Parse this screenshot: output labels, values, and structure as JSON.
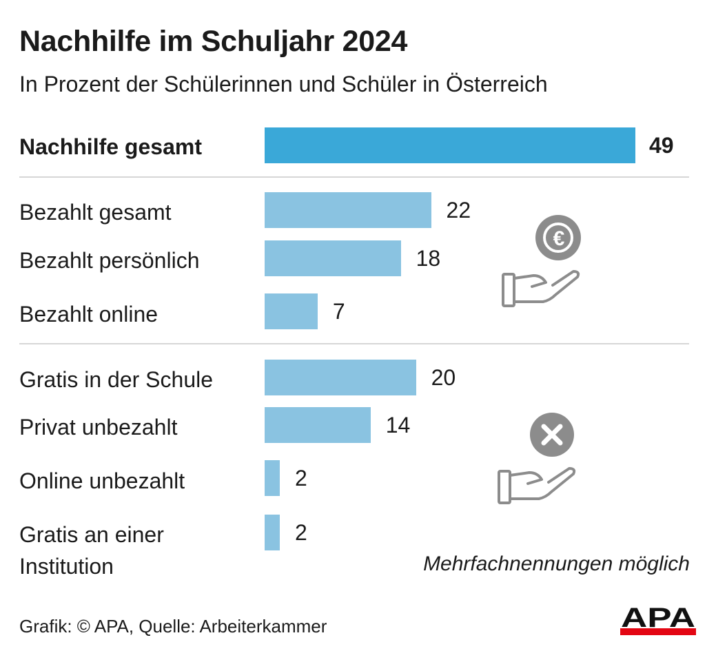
{
  "chart_data": {
    "type": "bar",
    "orientation": "horizontal",
    "title": "Nachhilfe im Schuljahr 2024",
    "subtitle": "In Prozent der Schülerinnen und Schüler in Österreich",
    "categories": [
      "Nachhilfe gesamt",
      "Bezahlt gesamt",
      "Bezahlt persönlich",
      "Bezahlt online",
      "Gratis in der Schule",
      "Privat unbezahlt",
      "Online unbezahlt",
      "Gratis an einer Institution"
    ],
    "values": [
      49,
      22,
      18,
      7,
      20,
      14,
      2,
      2
    ],
    "groups": [
      "total",
      "paid",
      "paid",
      "paid",
      "free",
      "free",
      "free",
      "free"
    ],
    "xlim": [
      0,
      100
    ],
    "grid": false,
    "legend": "none",
    "note": "Mehrfachnennungen möglich",
    "source": "Grafik: © APA, Quelle: Arbeiterkammer"
  },
  "labels": {
    "gratis_line1": "Gratis an einer",
    "gratis_line2": "Institution"
  },
  "colors": {
    "bar_total": "#3aa8d8",
    "bar_sub": "#8ac3e1",
    "divider": "#d6d6d6",
    "icon": "#8c8c8c",
    "logo_red": "#e30613"
  },
  "icons": {
    "paid": "euro-coin-hand-icon",
    "free": "x-circle-hand-icon"
  },
  "logo": "APA"
}
